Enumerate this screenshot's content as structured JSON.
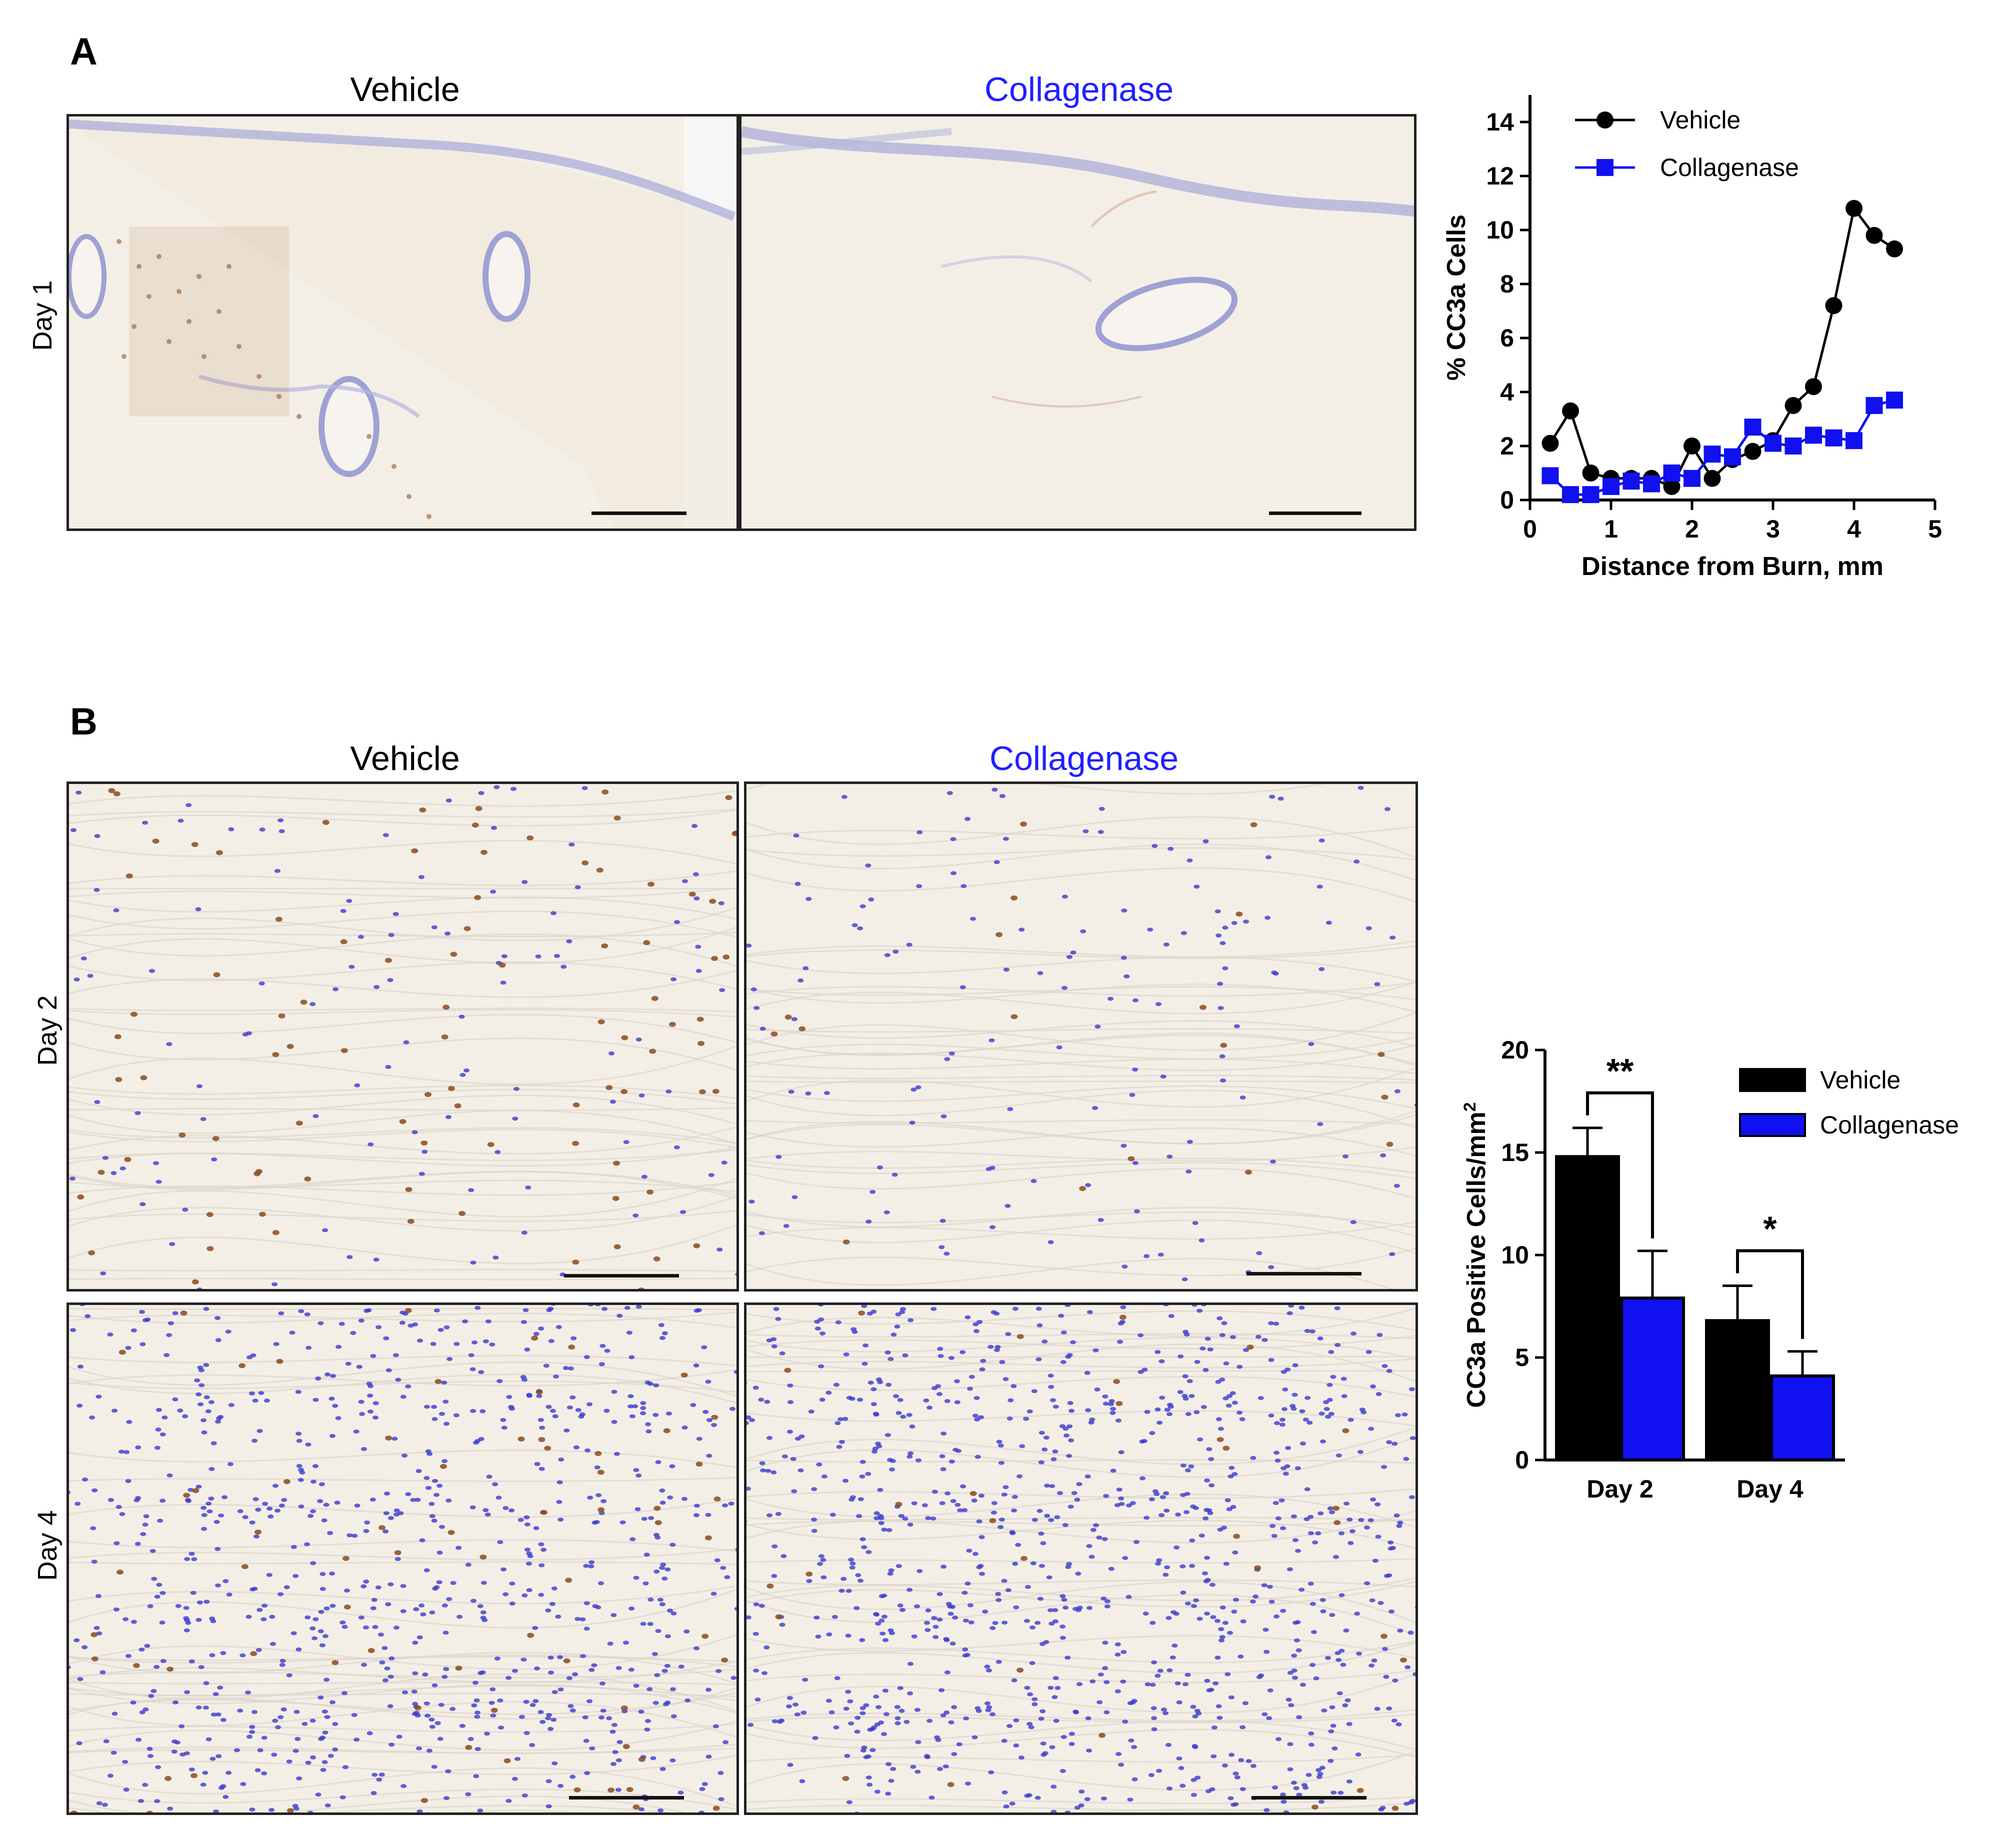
{
  "panels": {
    "A": {
      "letter": "A",
      "col_titles": [
        "Vehicle",
        "Collagenase"
      ],
      "row_label": "Day 1"
    },
    "B": {
      "letter": "B",
      "col_titles": [
        "Vehicle",
        "Collagenase"
      ],
      "row_labels": [
        "Day 2",
        "Day 4"
      ]
    }
  },
  "colors": {
    "vehicle": "#000000",
    "collagenase": "#1010f0",
    "collagenase_title": "#2020ff",
    "tissue_bg": "#f4efe6",
    "stain_brown": "#8b4a1c",
    "nuclei_blue": "#3a3ad0"
  },
  "chart_data": [
    {
      "type": "line",
      "xlabel": "Distance from Burn, mm",
      "ylabel": "% CC3a Cells",
      "xlim": [
        0,
        5
      ],
      "ylim": [
        0,
        15
      ],
      "xticks": [
        "0",
        "1",
        "2",
        "3",
        "4",
        "5"
      ],
      "yticks": [
        "0",
        "2",
        "4",
        "6",
        "8",
        "10",
        "12",
        "14"
      ],
      "legend_position": "top-left",
      "series": [
        {
          "name": "Vehicle",
          "marker": "circle",
          "x": [
            0.25,
            0.5,
            0.75,
            1.0,
            1.25,
            1.5,
            1.75,
            2.0,
            2.25,
            2.5,
            2.75,
            3.0,
            3.25,
            3.5,
            3.75,
            4.0,
            4.25,
            4.5
          ],
          "y": [
            2.1,
            3.3,
            1.0,
            0.8,
            0.8,
            0.8,
            0.5,
            2.0,
            0.8,
            1.5,
            1.8,
            2.2,
            3.5,
            4.2,
            7.2,
            10.8,
            9.8,
            9.3
          ]
        },
        {
          "name": "Collagenase",
          "marker": "square",
          "x": [
            0.25,
            0.5,
            0.75,
            1.0,
            1.25,
            1.5,
            1.75,
            2.0,
            2.25,
            2.5,
            2.75,
            3.0,
            3.25,
            3.5,
            3.75,
            4.0,
            4.25,
            4.5
          ],
          "y": [
            0.9,
            0.2,
            0.2,
            0.5,
            0.7,
            0.6,
            1.0,
            0.8,
            1.7,
            1.6,
            2.7,
            2.1,
            2.0,
            2.4,
            2.3,
            2.2,
            3.5,
            3.7
          ]
        }
      ]
    },
    {
      "type": "bar",
      "categories": [
        "Day 2",
        "Day 4"
      ],
      "ylabel": "CC3a Positive Cells/mm",
      "ylabel_sup": "2",
      "ylim": [
        0,
        20
      ],
      "yticks": [
        "0",
        "5",
        "10",
        "15",
        "20"
      ],
      "legend_position": "top-right",
      "series": [
        {
          "name": "Vehicle",
          "values": [
            14.8,
            6.8
          ],
          "errors": [
            1.4,
            1.7
          ]
        },
        {
          "name": "Collagenase",
          "values": [
            7.9,
            4.1
          ],
          "errors": [
            2.3,
            1.2
          ]
        }
      ],
      "significance": [
        "**",
        "*"
      ]
    }
  ]
}
